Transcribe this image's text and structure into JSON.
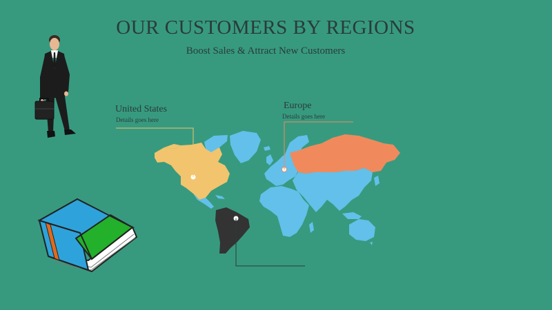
{
  "slide": {
    "title": "OUR CUSTOMERS BY REGIONS",
    "subtitle": "Boost Sales & Attract New Customers"
  },
  "callouts": [
    {
      "id": "united-states",
      "title": "United States",
      "detail": "Details goes here",
      "color": "#f2c46d"
    },
    {
      "id": "europe",
      "title": "Europe",
      "detail": "Details goes here",
      "color": "#f08a5d"
    }
  ],
  "colors": {
    "background": "#379a7f",
    "map_base": "#63c0ea",
    "north_america": "#f2c46d",
    "russia": "#f08a5d",
    "south_america": "#333333",
    "book_cover": "#2ea3db",
    "book_panel": "#23b02b",
    "book_spine_band": "#e06a1f"
  },
  "illustrations": [
    "businessman-with-briefcase",
    "book",
    "world-map"
  ]
}
